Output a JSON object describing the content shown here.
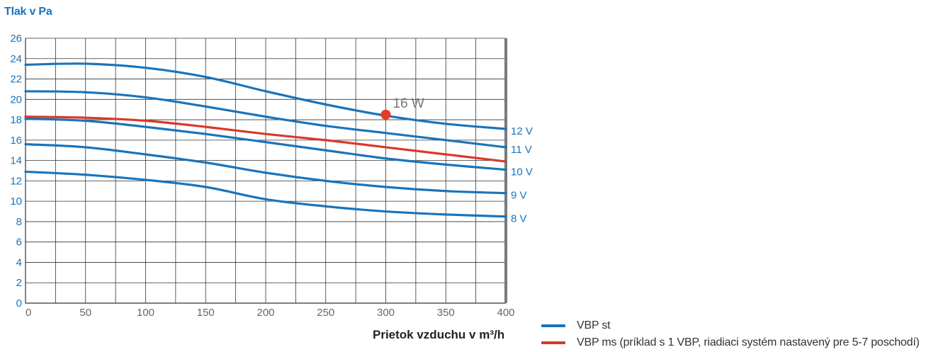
{
  "chart_data": {
    "type": "line",
    "title": "",
    "ylabel": "Tlak v Pa",
    "xlabel": "Prietok vzduchu v m³/h",
    "xlim": [
      0,
      400
    ],
    "ylim": [
      0,
      26
    ],
    "x_ticks": [
      0,
      50,
      100,
      150,
      200,
      250,
      300,
      350,
      400
    ],
    "y_ticks": [
      0,
      2,
      4,
      6,
      8,
      10,
      12,
      14,
      16,
      18,
      20,
      22,
      24,
      26
    ],
    "grid": true,
    "colors": {
      "st": "#1a74bb",
      "ms": "#d9392b",
      "point": "#e63a23"
    },
    "series": [
      {
        "name": "12 V",
        "group": "st",
        "x": [
          0,
          50,
          100,
          150,
          200,
          250,
          300,
          350,
          400
        ],
        "y": [
          23.4,
          23.5,
          23.1,
          22.2,
          20.8,
          19.5,
          18.4,
          17.6,
          17.1
        ]
      },
      {
        "name": "11 V",
        "group": "st",
        "x": [
          0,
          50,
          100,
          150,
          200,
          250,
          300,
          350,
          400
        ],
        "y": [
          20.8,
          20.7,
          20.2,
          19.3,
          18.3,
          17.4,
          16.7,
          16.0,
          15.3
        ]
      },
      {
        "name": "10 V",
        "group": "st",
        "x": [
          0,
          50,
          100,
          150,
          200,
          250,
          300,
          350,
          400
        ],
        "y": [
          18.1,
          17.9,
          17.3,
          16.6,
          15.8,
          15.0,
          14.2,
          13.6,
          13.1
        ]
      },
      {
        "name": "9 V",
        "group": "st",
        "x": [
          0,
          50,
          100,
          150,
          200,
          250,
          300,
          350,
          400
        ],
        "y": [
          15.6,
          15.3,
          14.6,
          13.8,
          12.8,
          12.0,
          11.4,
          11.0,
          10.8
        ]
      },
      {
        "name": "8 V",
        "group": "st",
        "x": [
          0,
          50,
          100,
          150,
          200,
          250,
          300,
          350,
          400
        ],
        "y": [
          12.9,
          12.6,
          12.1,
          11.4,
          10.2,
          9.5,
          9.0,
          8.7,
          8.5
        ]
      },
      {
        "name": "",
        "group": "ms",
        "x": [
          0,
          50,
          100,
          150,
          200,
          250,
          300,
          350,
          400
        ],
        "y": [
          18.3,
          18.2,
          17.9,
          17.3,
          16.6,
          16.0,
          15.3,
          14.6,
          13.9
        ]
      }
    ],
    "annotations": [
      {
        "text": "16 W",
        "x": 300,
        "y": 18.5
      }
    ],
    "legend": {
      "position": "bottom-right",
      "entries": [
        {
          "group": "st",
          "label": "VBP st"
        },
        {
          "group": "ms",
          "label": "VBP ms (príklad s 1 VBP, riadiaci systém nastavený pre 5-7 poschodí)"
        }
      ]
    }
  }
}
